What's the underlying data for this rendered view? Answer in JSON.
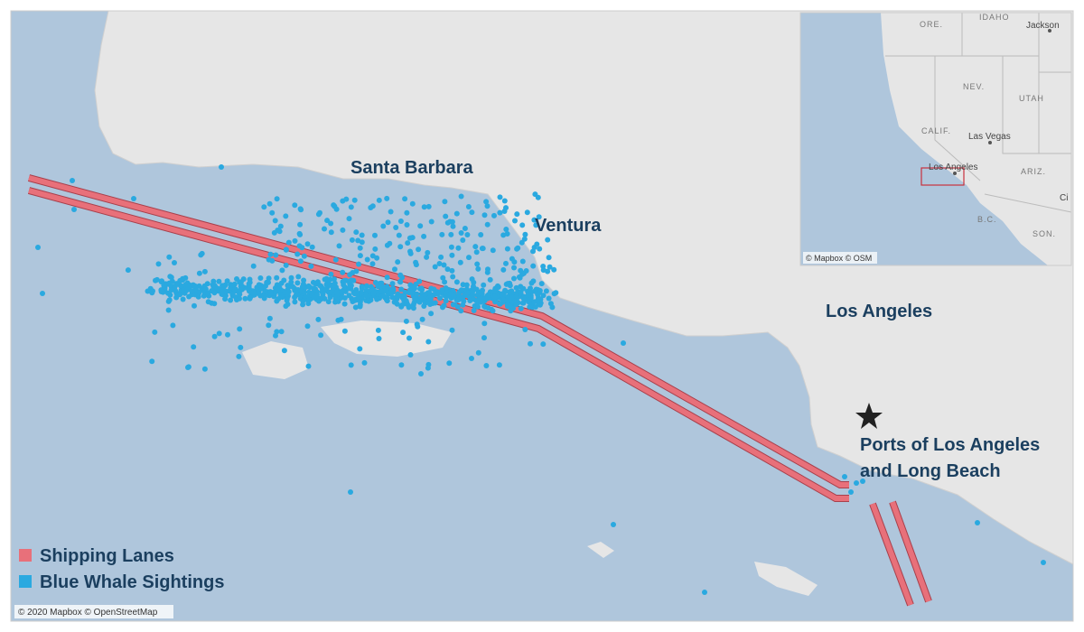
{
  "map": {
    "labels": {
      "santa_barbara": "Santa Barbara",
      "ventura": "Ventura",
      "los_angeles": "Los Angeles",
      "ports": [
        "Ports of Los Angeles",
        "and Long Beach"
      ]
    },
    "legend": [
      "Shipping Lanes",
      "Blue Whale Sightings"
    ],
    "attribution": "© 2020 Mapbox © OpenStreetMap",
    "inset": {
      "labels": [
        "ORE.",
        "IDAHO",
        "Jackson",
        "NEV.",
        "UTAH",
        "CALIF.",
        "Las Vegas",
        "Los Angeles",
        "ARIZ.",
        "B.C.",
        "SON.",
        "Ci"
      ],
      "attribution": "© Mapbox © OSM"
    }
  }
}
